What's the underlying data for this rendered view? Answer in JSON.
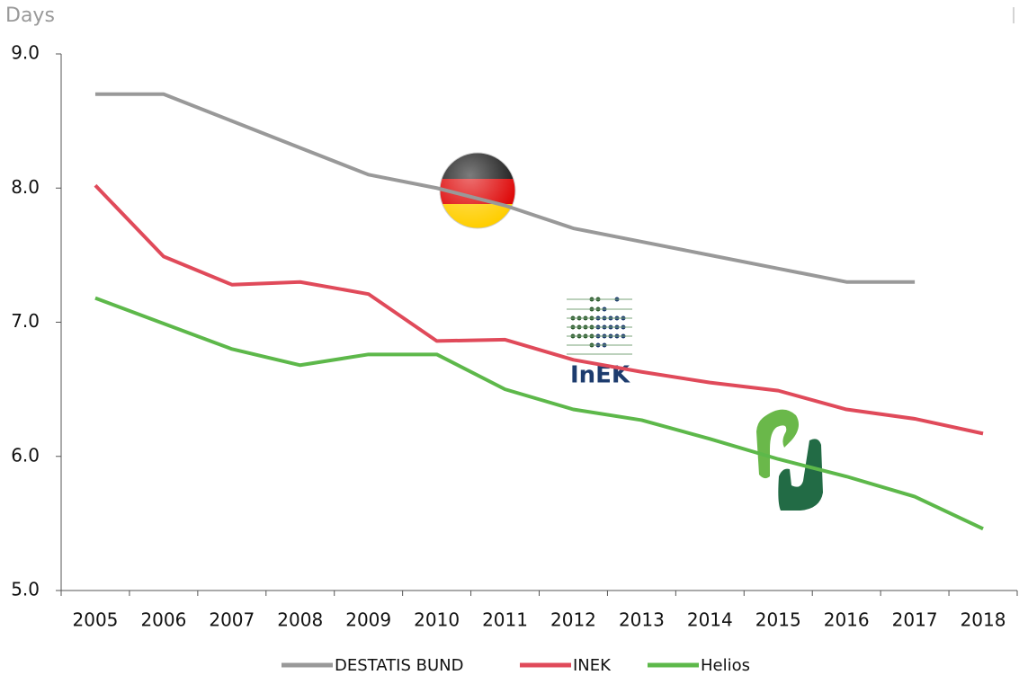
{
  "chart_data": {
    "type": "line",
    "y_label": "Days",
    "categories": [
      "2005",
      "2006",
      "2007",
      "2008",
      "2009",
      "2010",
      "2011",
      "2012",
      "2013",
      "2014",
      "2015",
      "2016",
      "2017",
      "2018"
    ],
    "series": [
      {
        "name": "DESTATIS BUND",
        "color": "#999999",
        "values": [
          8.7,
          8.7,
          8.5,
          8.3,
          8.1,
          8.0,
          7.87,
          7.7,
          7.6,
          7.5,
          7.4,
          7.3,
          7.3,
          null
        ]
      },
      {
        "name": "INEK",
        "color": "#e04a5a",
        "values": [
          8.02,
          7.49,
          7.28,
          7.3,
          7.21,
          6.86,
          6.87,
          6.72,
          6.63,
          6.55,
          6.49,
          6.35,
          6.28,
          6.17
        ]
      },
      {
        "name": "Helios",
        "color": "#5db84a",
        "values": [
          7.18,
          6.99,
          6.8,
          6.68,
          6.76,
          6.76,
          6.5,
          6.35,
          6.27,
          6.13,
          5.98,
          5.85,
          5.7,
          5.46
        ]
      }
    ],
    "ylim": [
      5,
      9
    ],
    "yticks": [
      {
        "value": 5,
        "label": "5.0"
      },
      {
        "value": 6,
        "label": "6.0"
      },
      {
        "value": 7,
        "label": "7.0"
      },
      {
        "value": 8,
        "label": "8.0"
      },
      {
        "value": 9,
        "label": "9.0"
      }
    ],
    "grid": false,
    "legend": "bottom",
    "annotations": [
      "InEK"
    ]
  }
}
